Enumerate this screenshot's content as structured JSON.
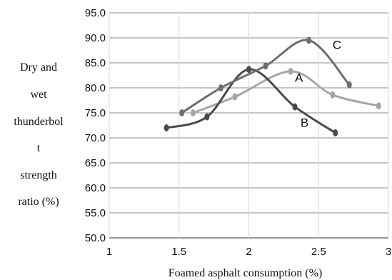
{
  "chart_data": {
    "type": "line",
    "title": "",
    "xlabel": "Foamed asphalt consumption (%)",
    "ylabel_lines": [
      "Dry and",
      "wet",
      "thunderbol",
      "t",
      "strength",
      "ratio (%)"
    ],
    "xlim": [
      1,
      3
    ],
    "ylim": [
      50,
      95
    ],
    "x_ticks": [
      "1",
      "1.5",
      "2",
      "2.5",
      "3"
    ],
    "y_ticks": [
      "50.0",
      "55.0",
      "60.0",
      "65.0",
      "70.0",
      "75.0",
      "80.0",
      "85.0",
      "90.0",
      "95.0"
    ],
    "grid": true,
    "series": [
      {
        "name": "A",
        "color": "#a6a6a6",
        "points": [
          [
            1.6,
            75.0
          ],
          [
            1.9,
            78.2
          ],
          [
            2.3,
            83.3
          ],
          [
            2.6,
            78.6
          ],
          [
            2.93,
            76.4
          ]
        ]
      },
      {
        "name": "B",
        "color": "#4a4a4a",
        "points": [
          [
            1.41,
            72.0
          ],
          [
            1.7,
            74.2
          ],
          [
            2.0,
            83.7
          ],
          [
            2.33,
            76.2
          ],
          [
            2.62,
            71.0
          ]
        ]
      },
      {
        "name": "C",
        "color": "#6e6e6e",
        "points": [
          [
            1.52,
            75.0
          ],
          [
            1.8,
            80.0
          ],
          [
            2.12,
            84.4
          ],
          [
            2.43,
            89.5
          ],
          [
            2.72,
            80.6
          ]
        ]
      }
    ]
  }
}
